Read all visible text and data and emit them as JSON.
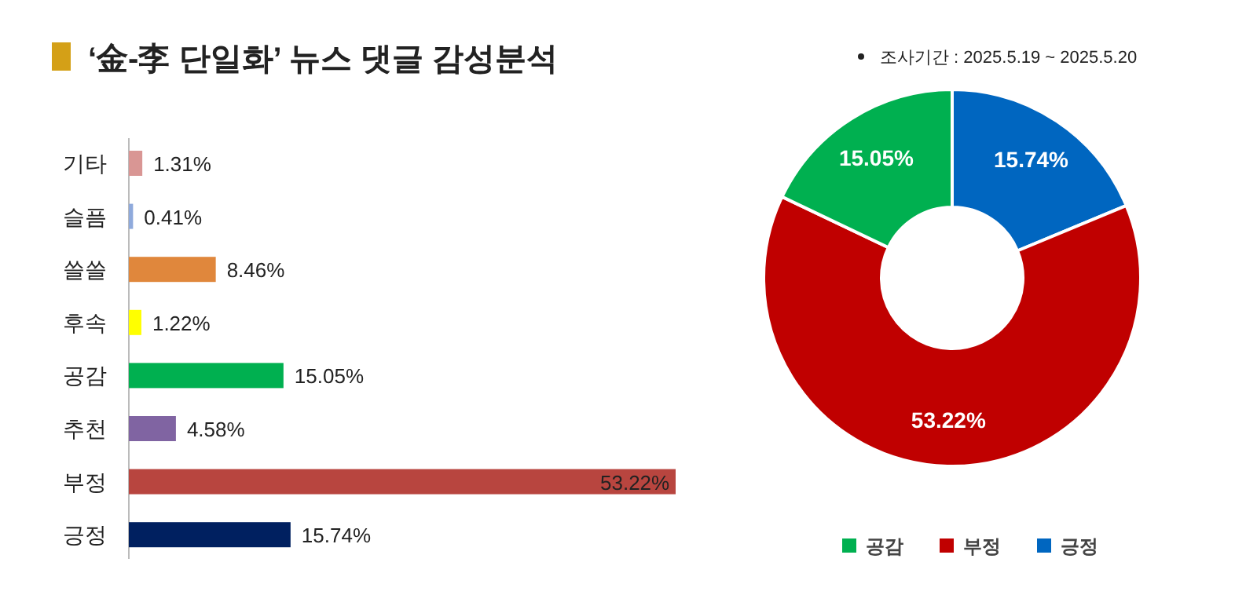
{
  "chart_data": [
    {
      "type": "bar",
      "orientation": "horizontal",
      "title": "‘金-李 단일화’ 뉴스 댓글 감성분석",
      "categories": [
        "기타",
        "슬픔",
        "쓸쓸",
        "후속",
        "공감",
        "추천",
        "부정",
        "긍정"
      ],
      "values": [
        1.31,
        0.41,
        8.46,
        1.22,
        15.05,
        4.58,
        53.22,
        15.74
      ],
      "value_labels": [
        "1.31%",
        "0.41%",
        "8.46%",
        "1.22%",
        "15.05%",
        "4.58%",
        "53.22%",
        "15.74%"
      ],
      "colors": [
        "#d99694",
        "#8faadc",
        "#e0873c",
        "#ffff00",
        "#00b050",
        "#8064a2",
        "#b8453f",
        "#002060"
      ]
    },
    {
      "type": "donut",
      "categories": [
        "긍정",
        "부정",
        "공감"
      ],
      "values": [
        15.74,
        53.22,
        15.05
      ],
      "value_labels": [
        "15.74%",
        "53.22%",
        "15.05%"
      ],
      "colors": [
        "#0066c0",
        "#c00000",
        "#00b050"
      ],
      "legend": "bottom",
      "annotations": [
        "조사기간 : 2025.5.19 ~ 2025.5.20"
      ]
    }
  ]
}
